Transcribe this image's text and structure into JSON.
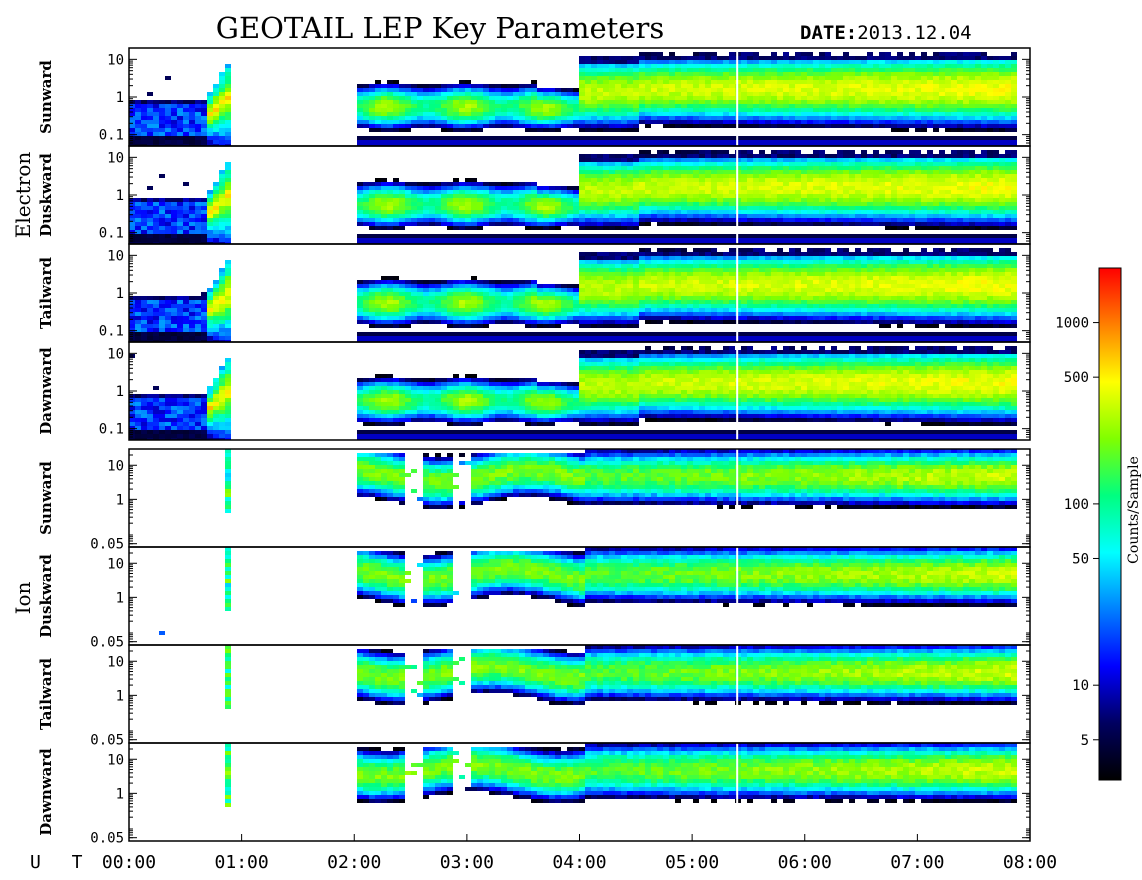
{
  "title": "GEOTAIL LEP Key Parameters",
  "date_label": "DATE:",
  "date_value": "2013.12.04",
  "colorbar": {
    "label": "Counts/Sample",
    "ticks": [
      5,
      10,
      50,
      100,
      500,
      1000
    ],
    "range": [
      3,
      2000
    ],
    "scale": "log",
    "stops": [
      "#000000",
      "#000060",
      "#0000ff",
      "#0080ff",
      "#00ffff",
      "#00ff80",
      "#80ff00",
      "#ffff00",
      "#ff8000",
      "#ff0000"
    ]
  },
  "chart_data": {
    "type": "heatmap",
    "x_axis": {
      "label": "U T",
      "ticks": [
        "00:00",
        "01:00",
        "02:00",
        "03:00",
        "04:00",
        "05:00",
        "06:00",
        "07:00",
        "08:00"
      ],
      "range_hours": [
        0,
        8
      ]
    },
    "groups": [
      {
        "name": "Electron",
        "ylim": [
          0.05,
          20
        ],
        "yscale": "log",
        "y_ticks": [
          {
            "v": 10,
            "label": "10"
          },
          {
            "v": 1,
            "label": "1"
          },
          {
            "v": 0.1,
            "label": "0.1"
          }
        ],
        "panels": [
          "Sunward",
          "Duskward",
          "Tailward",
          "Dawnward"
        ]
      },
      {
        "name": "Ion",
        "ylim": [
          0.04,
          30
        ],
        "yscale": "log",
        "y_ticks": [
          {
            "v": 10,
            "label": "10"
          },
          {
            "v": 1,
            "label": "1"
          },
          {
            "v": 0.05,
            "label": "0.05"
          }
        ],
        "panels": [
          "Sunward",
          "Duskward",
          "Tailward",
          "Dawnward"
        ]
      }
    ],
    "data_gaps_hours": [
      [
        0.9,
        2.0
      ]
    ],
    "events_hours": [
      5.4
    ]
  }
}
